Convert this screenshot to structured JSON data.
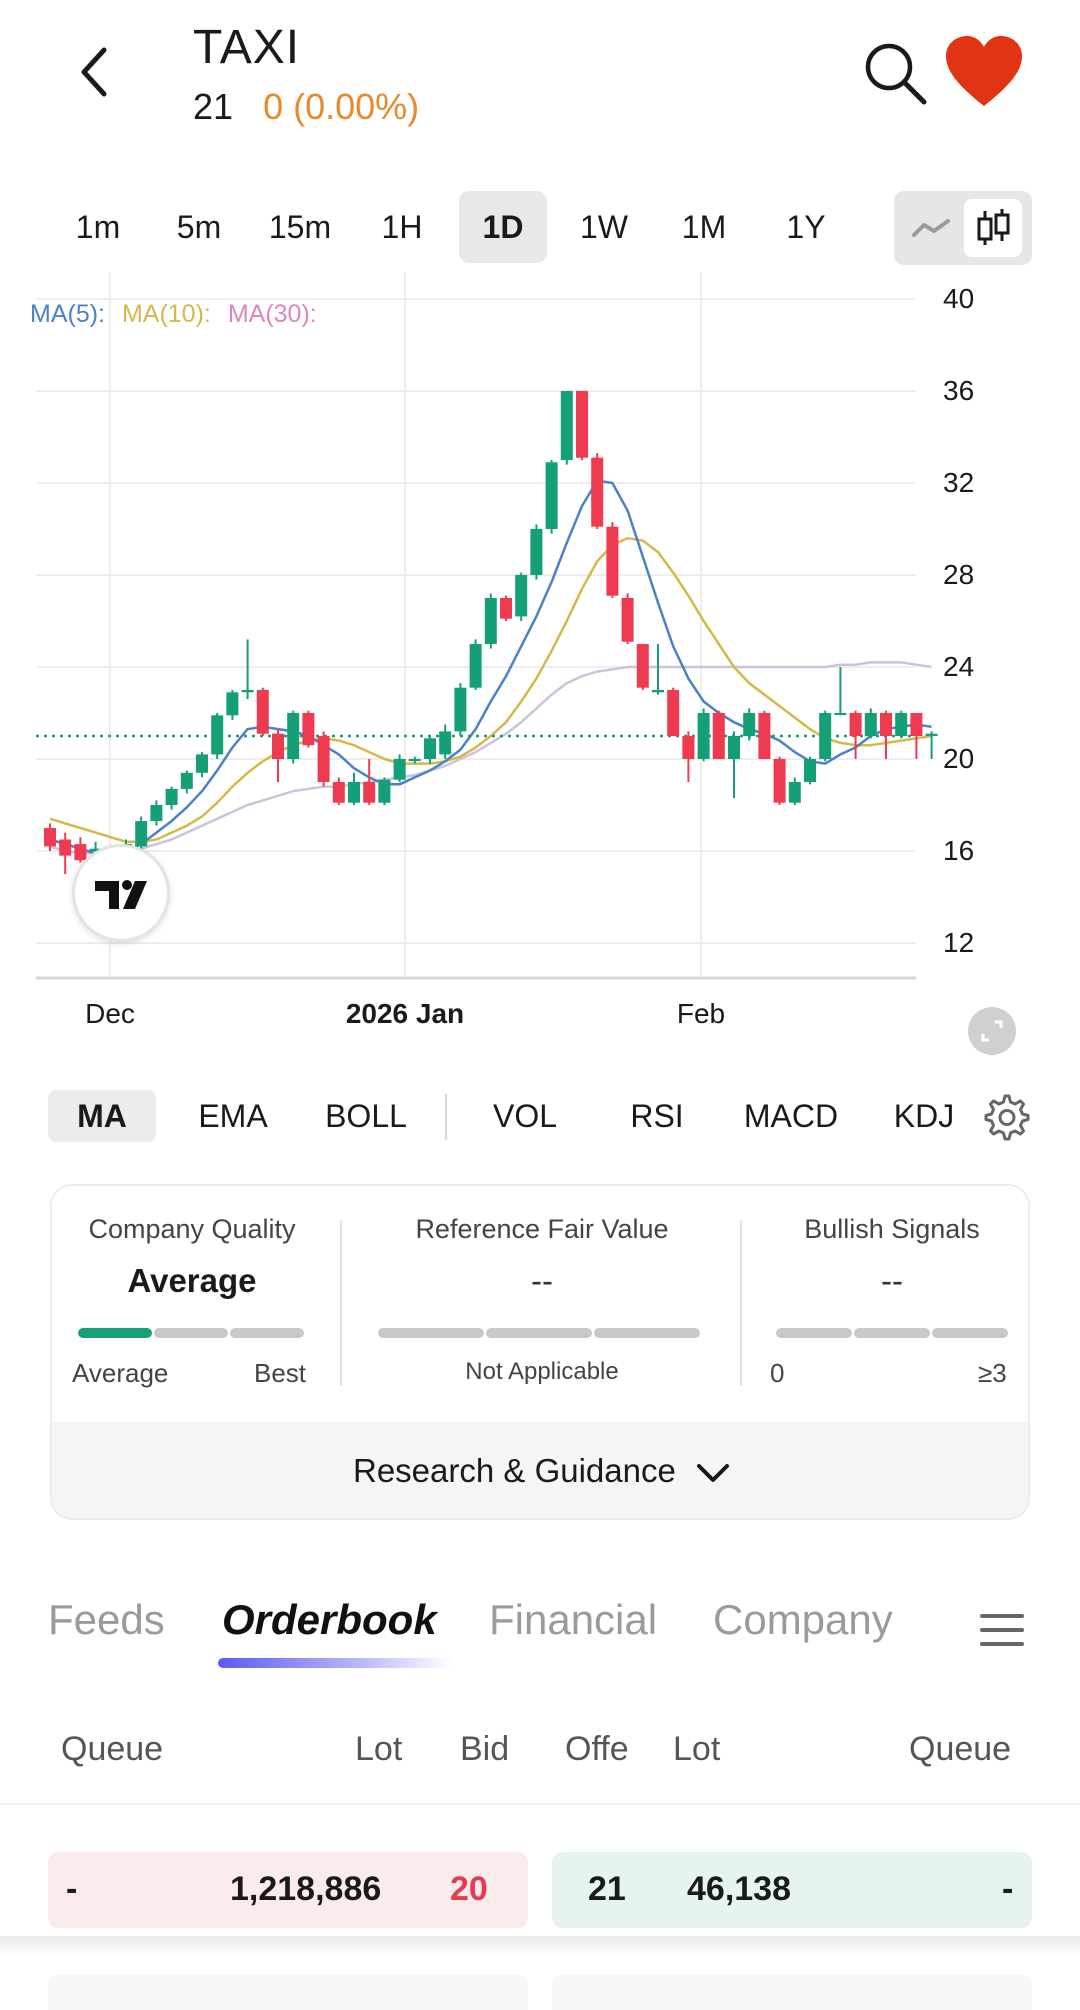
{
  "header": {
    "ticker": "TAXI",
    "price": "21",
    "change": "0 (0.00%)",
    "icons": [
      "back-icon",
      "search-icon",
      "heart-icon"
    ]
  },
  "timeframes": [
    "1m",
    "5m",
    "15m",
    "1H",
    "1D",
    "1W",
    "1M",
    "1Y"
  ],
  "active_timeframe": "1D",
  "chart": {
    "legend": {
      "ma5": "MA(5):",
      "ma10": "MA(10):",
      "ma30": "MA(30):"
    },
    "y_ticks": [
      "40",
      "36",
      "32",
      "28",
      "24",
      "20",
      "16",
      "12"
    ],
    "x_ticks": [
      {
        "label": "Dec",
        "bold": false
      },
      {
        "label": "2026 Jan",
        "bold": true
      },
      {
        "label": "Feb",
        "bold": false
      }
    ],
    "colors": {
      "up": "#149f78",
      "down": "#ee3b4f",
      "ma5": "#4a82c8",
      "ma10": "#d6b84a",
      "ma30": "#c9c4dc",
      "last_price_line": "#149f78"
    }
  },
  "chart_data": {
    "type": "candlestick",
    "y_range": [
      12,
      40
    ],
    "last_price": 21,
    "candles": [
      {
        "o": 17,
        "h": 17.2,
        "l": 16,
        "c": 16.2
      },
      {
        "o": 16.5,
        "h": 16.8,
        "l": 15,
        "c": 15.8
      },
      {
        "o": 16.3,
        "h": 16.6,
        "l": 15.5,
        "c": 15.6
      },
      {
        "o": 16,
        "h": 16.4,
        "l": 15.7,
        "c": 16.1
      },
      {
        "o": 15.8,
        "h": 16.2,
        "l": 15.5,
        "c": 16.1
      },
      {
        "o": 15.9,
        "h": 16.5,
        "l": 15.8,
        "c": 16.3
      },
      {
        "o": 16.2,
        "h": 17.5,
        "l": 16.1,
        "c": 17.3
      },
      {
        "o": 17.3,
        "h": 18.2,
        "l": 17.1,
        "c": 18.0
      },
      {
        "o": 18.0,
        "h": 18.8,
        "l": 17.8,
        "c": 18.7
      },
      {
        "o": 18.7,
        "h": 19.5,
        "l": 18.5,
        "c": 19.4
      },
      {
        "o": 19.4,
        "h": 20.3,
        "l": 19.2,
        "c": 20.2
      },
      {
        "o": 20.2,
        "h": 22.0,
        "l": 20.0,
        "c": 21.9
      },
      {
        "o": 21.9,
        "h": 23.0,
        "l": 21.7,
        "c": 22.9
      },
      {
        "o": 22.9,
        "h": 25.2,
        "l": 22.6,
        "c": 23.0
      },
      {
        "o": 23.0,
        "h": 23.1,
        "l": 21.0,
        "c": 21.1
      },
      {
        "o": 21.1,
        "h": 21.3,
        "l": 19.0,
        "c": 20.0
      },
      {
        "o": 20.0,
        "h": 22.1,
        "l": 19.8,
        "c": 22.0
      },
      {
        "o": 22.0,
        "h": 22.1,
        "l": 20.5,
        "c": 20.6
      },
      {
        "o": 21.0,
        "h": 21.2,
        "l": 18.8,
        "c": 19.0
      },
      {
        "o": 19.0,
        "h": 19.2,
        "l": 18.0,
        "c": 18.1
      },
      {
        "o": 18.1,
        "h": 19.4,
        "l": 18.0,
        "c": 19.0
      },
      {
        "o": 19.0,
        "h": 20.0,
        "l": 18.0,
        "c": 18.1
      },
      {
        "o": 18.1,
        "h": 19.2,
        "l": 18.0,
        "c": 19.1
      },
      {
        "o": 19.1,
        "h": 20.2,
        "l": 19.0,
        "c": 20.0
      },
      {
        "o": 20.0,
        "h": 20.1,
        "l": 19.8,
        "c": 20.0
      },
      {
        "o": 20.0,
        "h": 21.0,
        "l": 19.8,
        "c": 20.9
      },
      {
        "o": 20.2,
        "h": 21.5,
        "l": 20.0,
        "c": 21.2
      },
      {
        "o": 21.2,
        "h": 23.3,
        "l": 21.0,
        "c": 23.1
      },
      {
        "o": 23.1,
        "h": 25.2,
        "l": 23.0,
        "c": 25.0
      },
      {
        "o": 25.0,
        "h": 27.2,
        "l": 24.8,
        "c": 27.0
      },
      {
        "o": 27.0,
        "h": 27.1,
        "l": 26.0,
        "c": 26.1
      },
      {
        "o": 26.2,
        "h": 28.1,
        "l": 26.0,
        "c": 28.0
      },
      {
        "o": 28.0,
        "h": 30.2,
        "l": 27.8,
        "c": 30.0
      },
      {
        "o": 30.0,
        "h": 33.0,
        "l": 29.8,
        "c": 32.9
      },
      {
        "o": 33.0,
        "h": 36.0,
        "l": 32.8,
        "c": 36.0
      },
      {
        "o": 36.0,
        "h": 36.0,
        "l": 33.0,
        "c": 33.1
      },
      {
        "o": 33.1,
        "h": 33.3,
        "l": 30.0,
        "c": 30.1
      },
      {
        "o": 30.1,
        "h": 30.3,
        "l": 27.0,
        "c": 27.1
      },
      {
        "o": 27.0,
        "h": 27.2,
        "l": 25.0,
        "c": 25.1
      },
      {
        "o": 25.0,
        "h": 25.0,
        "l": 23.0,
        "c": 23.1
      },
      {
        "o": 22.9,
        "h": 25.0,
        "l": 22.8,
        "c": 23.0
      },
      {
        "o": 23.0,
        "h": 23.1,
        "l": 21.0,
        "c": 21.0
      },
      {
        "o": 21.0,
        "h": 21.2,
        "l": 19.0,
        "c": 20.0
      },
      {
        "o": 20.0,
        "h": 22.2,
        "l": 19.9,
        "c": 22.0
      },
      {
        "o": 22.0,
        "h": 22.1,
        "l": 20.0,
        "c": 20.0
      },
      {
        "o": 20.0,
        "h": 21.2,
        "l": 18.3,
        "c": 21.0
      },
      {
        "o": 21.0,
        "h": 22.2,
        "l": 20.8,
        "c": 22.0
      },
      {
        "o": 22.0,
        "h": 22.1,
        "l": 20.0,
        "c": 20.0
      },
      {
        "o": 20.0,
        "h": 20.1,
        "l": 18.0,
        "c": 18.1
      },
      {
        "o": 18.1,
        "h": 19.2,
        "l": 18.0,
        "c": 19.0
      },
      {
        "o": 19.0,
        "h": 20.1,
        "l": 18.9,
        "c": 20.0
      },
      {
        "o": 20.0,
        "h": 22.1,
        "l": 19.9,
        "c": 22.0
      },
      {
        "o": 22.0,
        "h": 24.0,
        "l": 21.9,
        "c": 22.0
      },
      {
        "o": 22.0,
        "h": 22.1,
        "l": 20.0,
        "c": 21.0
      },
      {
        "o": 21.0,
        "h": 22.2,
        "l": 20.9,
        "c": 22.0
      },
      {
        "o": 22.0,
        "h": 22.1,
        "l": 20.0,
        "c": 21.0
      },
      {
        "o": 21.0,
        "h": 22.1,
        "l": 20.9,
        "c": 22.0
      },
      {
        "o": 22.0,
        "h": 22.0,
        "l": 20.0,
        "c": 21.0
      },
      {
        "o": 21.0,
        "h": 21.2,
        "l": 20.0,
        "c": 21.1
      }
    ],
    "ma5": [
      16.5,
      16.3,
      16.1,
      15.9,
      15.9,
      16.0,
      16.3,
      16.8,
      17.3,
      17.9,
      18.6,
      19.5,
      20.5,
      21.3,
      21.4,
      21.3,
      21.2,
      21.0,
      20.6,
      20.2,
      19.6,
      19.2,
      18.9,
      18.9,
      19.2,
      19.5,
      19.9,
      20.4,
      21.3,
      22.5,
      23.6,
      24.9,
      26.2,
      27.7,
      29.4,
      31.0,
      32.1,
      32.0,
      30.8,
      28.8,
      26.8,
      24.9,
      23.5,
      22.5,
      22.0,
      21.6,
      21.3,
      21.1,
      20.8,
      20.3,
      19.9,
      19.8,
      20.2,
      20.5,
      21.0,
      21.3,
      21.4,
      21.5,
      21.4
    ],
    "ma10": [
      17.4,
      17.2,
      17.0,
      16.8,
      16.6,
      16.4,
      16.4,
      16.5,
      16.8,
      17.1,
      17.5,
      18.1,
      18.8,
      19.4,
      19.9,
      20.3,
      20.6,
      20.8,
      20.9,
      20.8,
      20.6,
      20.3,
      20.0,
      19.8,
      19.8,
      19.8,
      19.9,
      20.1,
      20.5,
      21.0,
      21.6,
      22.5,
      23.5,
      24.7,
      26.0,
      27.4,
      28.6,
      29.3,
      29.6,
      29.5,
      29.0,
      28.1,
      27.1,
      26.0,
      25.0,
      24.0,
      23.3,
      22.8,
      22.3,
      21.8,
      21.3,
      20.9,
      20.7,
      20.6,
      20.6,
      20.7,
      20.8,
      20.9,
      21.0
    ],
    "ma30": [
      16.2,
      16.0,
      15.9,
      15.9,
      15.9,
      16.0,
      16.1,
      16.3,
      16.5,
      16.8,
      17.1,
      17.4,
      17.7,
      18.0,
      18.2,
      18.4,
      18.6,
      18.7,
      18.8,
      18.8,
      18.9,
      19.0,
      19.1,
      19.2,
      19.3,
      19.5,
      19.7,
      20.0,
      20.3,
      20.7,
      21.1,
      21.6,
      22.2,
      22.8,
      23.3,
      23.6,
      23.8,
      23.9,
      24.0,
      24.0,
      24.0,
      24.0,
      24.0,
      24.0,
      24.0,
      24.0,
      24.0,
      24.0,
      24.0,
      24.0,
      24.0,
      24.0,
      24.1,
      24.1,
      24.2,
      24.2,
      24.2,
      24.1,
      24.0
    ]
  },
  "indicators": [
    "MA",
    "EMA",
    "BOLL",
    "VOL",
    "RSI",
    "MACD",
    "KDJ"
  ],
  "active_indicator": "MA",
  "research": {
    "quality_title": "Company Quality",
    "quality_value": "Average",
    "quality_level": 0.33,
    "quality_min": "Average",
    "quality_max": "Best",
    "fair_title": "Reference Fair Value",
    "fair_value": "--",
    "fair_note": "Not Applicable",
    "signals_title": "Bullish Signals",
    "signals_value": "--",
    "signals_min": "0",
    "signals_max": "≥3",
    "toggle_label": "Research & Guidance"
  },
  "tabs": [
    "Feeds",
    "Orderbook",
    "Financial",
    "Company"
  ],
  "active_tab": "Orderbook",
  "orderbook": {
    "headers": {
      "queue_left": "Queue",
      "lot_left": "Lot",
      "bid": "Bid",
      "offer": "Offe",
      "lot_right": "Lot",
      "queue_right": "Queue"
    },
    "rows": [
      {
        "bid_queue": "-",
        "bid_lot": "1,218,886",
        "bid": "20",
        "offer": "21",
        "offer_lot": "46,138",
        "offer_queue": "-"
      }
    ]
  }
}
